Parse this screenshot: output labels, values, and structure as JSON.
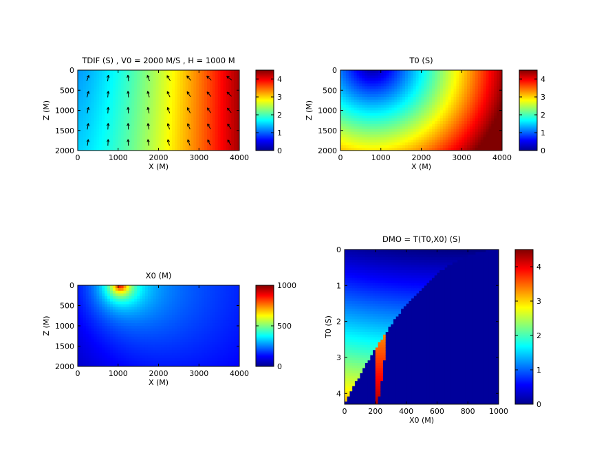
{
  "chart_data": [
    {
      "type": "heatmap",
      "title": "TDIF (S) , V0 = 2000 M/S , H = 1000 M",
      "xlabel": "X (M)",
      "ylabel": "Z (M)",
      "xlim": [
        0,
        4000
      ],
      "ylim": [
        0,
        2000
      ],
      "y_reversed": true,
      "xticks": [
        "0",
        "1000",
        "2000",
        "3000",
        "4000"
      ],
      "yticks": [
        "0",
        "500",
        "1000",
        "1500",
        "2000"
      ],
      "colorbar": {
        "range": [
          0,
          4.5
        ],
        "ticks": [
          "0",
          "1",
          "2",
          "3",
          "4"
        ]
      },
      "overlay": "quiver",
      "colormap": "jet"
    },
    {
      "type": "heatmap",
      "title": "T0 (S)",
      "xlabel": "X (M)",
      "ylabel": "Z (M)",
      "xlim": [
        0,
        4000
      ],
      "ylim": [
        0,
        2000
      ],
      "y_reversed": true,
      "xticks": [
        "0",
        "1000",
        "2000",
        "3000",
        "4000"
      ],
      "yticks": [
        "0",
        "500",
        "1000",
        "1500",
        "2000"
      ],
      "colorbar": {
        "range": [
          0,
          4.5
        ],
        "ticks": [
          "0",
          "1",
          "2",
          "3",
          "4"
        ]
      },
      "colormap": "jet"
    },
    {
      "type": "heatmap",
      "title": "X0 (M)",
      "xlabel": "X (M)",
      "ylabel": "Z (M)",
      "xlim": [
        0,
        4000
      ],
      "ylim": [
        0,
        2000
      ],
      "y_reversed": true,
      "xticks": [
        "0",
        "1000",
        "2000",
        "3000",
        "4000"
      ],
      "yticks": [
        "0",
        "500",
        "1000",
        "1500",
        "2000"
      ],
      "colorbar": {
        "range": [
          0,
          1000
        ],
        "ticks": [
          "0",
          "500",
          "1000"
        ]
      },
      "colormap": "jet"
    },
    {
      "type": "heatmap",
      "title": "DMO = T(T0,X0) (S)",
      "xlabel": "X0 (M)",
      "ylabel": "T0 (S)",
      "xlim": [
        0,
        1000
      ],
      "ylim": [
        0,
        4.3
      ],
      "y_reversed": true,
      "xticks": [
        "0",
        "200",
        "400",
        "600",
        "800",
        "1000"
      ],
      "yticks": [
        "0",
        "1",
        "2",
        "3",
        "4"
      ],
      "colorbar": {
        "range": [
          0,
          4.5
        ],
        "ticks": [
          "0",
          "1",
          "2",
          "3",
          "4"
        ]
      },
      "colormap": "jet"
    }
  ]
}
